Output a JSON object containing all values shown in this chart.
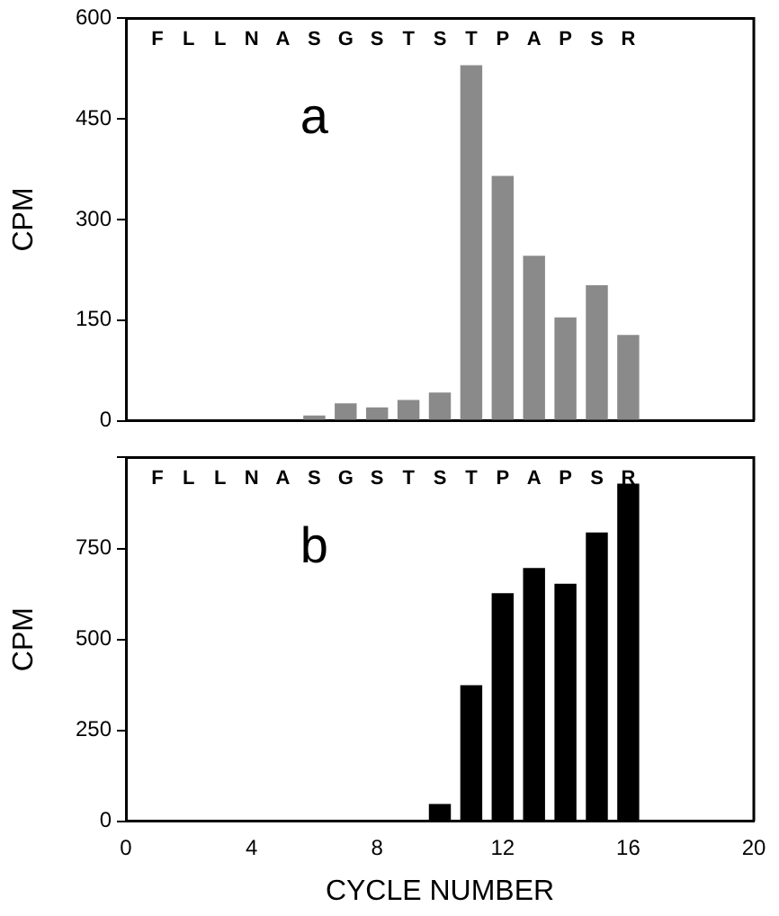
{
  "chart_data": [
    {
      "type": "bar",
      "ylabel": "CPM",
      "x": [
        1,
        2,
        3,
        4,
        5,
        6,
        7,
        8,
        9,
        10,
        11,
        12,
        13,
        14,
        15,
        16
      ],
      "values": [
        0,
        0,
        0,
        0,
        0,
        8,
        26,
        20,
        31,
        42,
        530,
        365,
        246,
        154,
        202,
        128
      ],
      "color": "#8a8a8a",
      "xlim": [
        0,
        20
      ],
      "xticks": [
        {
          "value": 0,
          "label": null
        },
        {
          "value": 4,
          "label": null
        },
        {
          "value": 8,
          "label": null
        },
        {
          "value": 12,
          "label": null
        },
        {
          "value": 16,
          "label": null
        },
        {
          "value": 20,
          "label": null
        }
      ],
      "ylim": [
        0,
        600
      ],
      "yticks": [
        0,
        150,
        300,
        450,
        600
      ],
      "tick_labels": "y",
      "grid": false,
      "legend": false,
      "annotations": [
        "a",
        "F L L N A S G S T S T P A P S R"
      ]
    },
    {
      "type": "bar",
      "ylabel": "CPM",
      "xlabel": "CYCLE NUMBER",
      "x": [
        1,
        2,
        3,
        4,
        5,
        6,
        7,
        8,
        9,
        10,
        11,
        12,
        13,
        14,
        15,
        16
      ],
      "values": [
        0,
        0,
        0,
        0,
        0,
        0,
        0,
        0,
        0,
        48,
        374,
        627,
        696,
        653,
        794,
        928
      ],
      "color": "#000000",
      "xlim": [
        0,
        20
      ],
      "xticks": [
        0,
        4,
        8,
        12,
        16,
        20
      ],
      "ylim": [
        0,
        1000
      ],
      "yticks": [
        0,
        250,
        500,
        750,
        {
          "value": 1000,
          "label": null
        }
      ],
      "grid": false,
      "legend": false,
      "annotations": [
        "b",
        "F L L N A S G S T S T P A P S R"
      ]
    }
  ]
}
